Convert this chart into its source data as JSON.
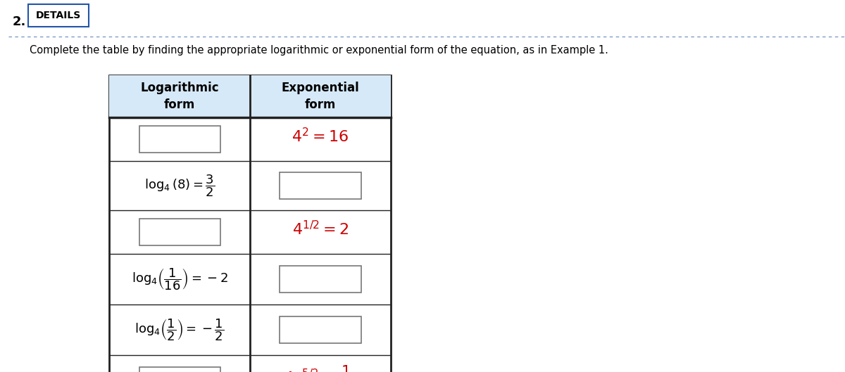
{
  "title_number": "2.",
  "details_text": "DETAILS",
  "instruction": "Complete the table by finding the appropriate logarithmic or exponential form of the equation, as in Example 1.",
  "white": "#ffffff",
  "table_border_color": "#222222",
  "header_bg": "#d6e9f8",
  "red_color": "#cc0000",
  "black_color": "#000000",
  "blue_color": "#2255aa",
  "dotted_line_color": "#6688bb",
  "details_border_color": "#2255aa",
  "fig_width": 12.0,
  "fig_height": 5.29,
  "dpi": 100
}
